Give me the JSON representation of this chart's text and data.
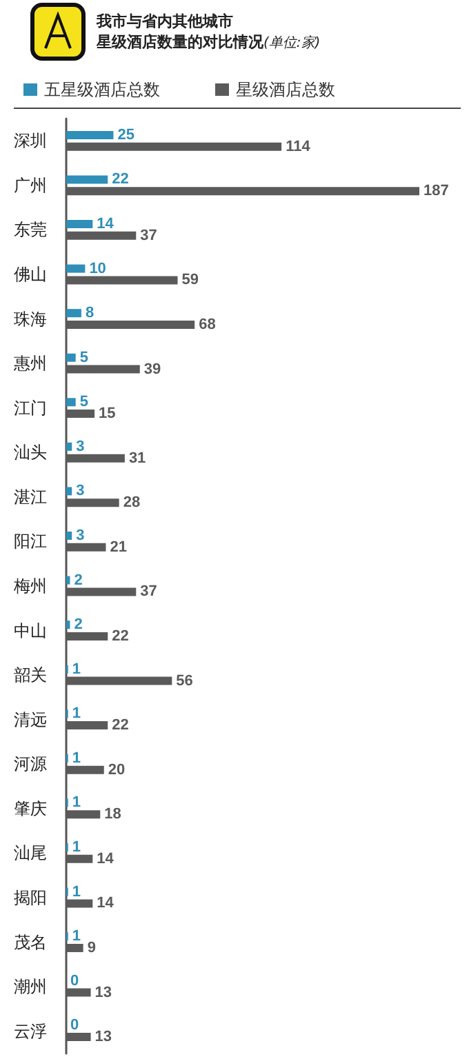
{
  "chart_data": {
    "type": "bar",
    "orientation": "horizontal",
    "title": "我市与省内其他城市星级酒店数量的对比情况",
    "subtitle": "(单位:家)",
    "categories": [
      "深圳",
      "广州",
      "东莞",
      "佛山",
      "珠海",
      "惠州",
      "江门",
      "汕头",
      "湛江",
      "阳江",
      "梅州",
      "中山",
      "韶关",
      "清远",
      "河源",
      "肇庆",
      "汕尾",
      "揭阳",
      "茂名",
      "潮州",
      "云浮"
    ],
    "series": [
      {
        "name": "五星级酒店总数",
        "color": "#2f8fb8",
        "values": [
          25,
          22,
          14,
          10,
          8,
          5,
          5,
          3,
          3,
          3,
          2,
          2,
          1,
          1,
          1,
          1,
          1,
          1,
          1,
          0,
          0
        ]
      },
      {
        "name": "星级酒店总数",
        "color": "#5a5a5a",
        "values": [
          114,
          187,
          37,
          59,
          68,
          39,
          15,
          31,
          28,
          21,
          37,
          22,
          56,
          22,
          20,
          18,
          14,
          14,
          9,
          13,
          13
        ]
      }
    ],
    "data_labels": true,
    "legend": "top left"
  }
}
